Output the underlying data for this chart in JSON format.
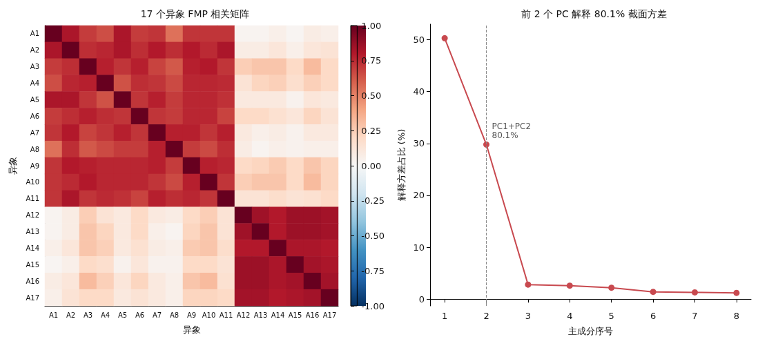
{
  "chart_data": [
    {
      "type": "heatmap",
      "title": "17 个异象 FMP 相关矩阵",
      "xlabel": "异象",
      "ylabel": "异象",
      "categories": [
        "A1",
        "A2",
        "A3",
        "A4",
        "A5",
        "A6",
        "A7",
        "A8",
        "A9",
        "A10",
        "A11",
        "A12",
        "A13",
        "A14",
        "A15",
        "A16",
        "A17"
      ],
      "y_categories": [
        "A1",
        "A2",
        "A3",
        "A4",
        "A5",
        "A6",
        "A7",
        "A8",
        "A9",
        "A10",
        "A11",
        "A12",
        "A13",
        "A14",
        "A15",
        "A16",
        "A17"
      ],
      "cells": [
        [
          1,
          0.82,
          0.7,
          0.65,
          0.82,
          0.7,
          0.72,
          0.55,
          0.72,
          0.72,
          0.72,
          0.03,
          0.03,
          0.06,
          0.02,
          0.08,
          0.06
        ],
        [
          0.82,
          1,
          0.74,
          0.76,
          0.82,
          0.74,
          0.8,
          0.74,
          0.8,
          0.75,
          0.82,
          0.08,
          0.08,
          0.12,
          0.06,
          0.12,
          0.14
        ],
        [
          0.7,
          0.74,
          1,
          0.78,
          0.72,
          0.78,
          0.68,
          0.62,
          0.78,
          0.8,
          0.72,
          0.25,
          0.28,
          0.28,
          0.2,
          0.32,
          0.2
        ],
        [
          0.65,
          0.76,
          0.78,
          1,
          0.64,
          0.74,
          0.72,
          0.66,
          0.76,
          0.76,
          0.75,
          0.14,
          0.22,
          0.24,
          0.17,
          0.24,
          0.2
        ],
        [
          0.82,
          0.82,
          0.72,
          0.64,
          1,
          0.72,
          0.78,
          0.7,
          0.76,
          0.76,
          0.73,
          0.1,
          0.1,
          0.1,
          0.04,
          0.12,
          0.1
        ],
        [
          0.7,
          0.74,
          0.78,
          0.74,
          0.72,
          1,
          0.72,
          0.7,
          0.76,
          0.76,
          0.68,
          0.2,
          0.2,
          0.16,
          0.12,
          0.22,
          0.14
        ],
        [
          0.72,
          0.8,
          0.68,
          0.72,
          0.78,
          0.72,
          1,
          0.78,
          0.78,
          0.72,
          0.78,
          0.1,
          0.06,
          0.08,
          0.04,
          0.1,
          0.1
        ],
        [
          0.55,
          0.74,
          0.62,
          0.66,
          0.7,
          0.7,
          0.78,
          1,
          0.7,
          0.66,
          0.74,
          0.08,
          0.03,
          0.06,
          0.04,
          0.06,
          0.06
        ],
        [
          0.72,
          0.8,
          0.78,
          0.76,
          0.76,
          0.76,
          0.78,
          0.7,
          1,
          0.78,
          0.76,
          0.2,
          0.22,
          0.26,
          0.2,
          0.28,
          0.22
        ],
        [
          0.72,
          0.75,
          0.8,
          0.76,
          0.76,
          0.76,
          0.72,
          0.66,
          0.78,
          1,
          0.72,
          0.25,
          0.28,
          0.28,
          0.2,
          0.32,
          0.22
        ],
        [
          0.72,
          0.82,
          0.72,
          0.75,
          0.73,
          0.68,
          0.78,
          0.74,
          0.76,
          0.72,
          1,
          0.14,
          0.14,
          0.18,
          0.14,
          0.16,
          0.2
        ],
        [
          0.03,
          0.08,
          0.25,
          0.14,
          0.1,
          0.2,
          0.1,
          0.08,
          0.2,
          0.25,
          0.14,
          1,
          0.85,
          0.8,
          0.86,
          0.86,
          0.84
        ],
        [
          0.03,
          0.08,
          0.28,
          0.22,
          0.1,
          0.2,
          0.06,
          0.03,
          0.22,
          0.28,
          0.14,
          0.85,
          1,
          0.8,
          0.86,
          0.86,
          0.84
        ],
        [
          0.06,
          0.12,
          0.28,
          0.24,
          0.1,
          0.16,
          0.08,
          0.06,
          0.26,
          0.28,
          0.18,
          0.8,
          0.8,
          1,
          0.82,
          0.82,
          0.8
        ],
        [
          0.02,
          0.06,
          0.2,
          0.17,
          0.04,
          0.12,
          0.04,
          0.04,
          0.2,
          0.2,
          0.14,
          0.86,
          0.86,
          0.82,
          1,
          0.84,
          0.82
        ],
        [
          0.08,
          0.12,
          0.32,
          0.24,
          0.12,
          0.22,
          0.1,
          0.06,
          0.28,
          0.32,
          0.16,
          0.86,
          0.86,
          0.82,
          0.84,
          1,
          0.84
        ],
        [
          0.06,
          0.14,
          0.2,
          0.2,
          0.1,
          0.14,
          0.1,
          0.06,
          0.22,
          0.22,
          0.2,
          0.84,
          0.84,
          0.8,
          0.82,
          0.84,
          1
        ]
      ],
      "clim": [
        -1,
        1
      ],
      "cticks": [
        {
          "value": -1,
          "label": "-1.00"
        },
        {
          "value": -0.75,
          "label": "-0.75"
        },
        {
          "value": -0.5,
          "label": "-0.50"
        },
        {
          "value": -0.25,
          "label": "-0.25"
        },
        {
          "value": 0,
          "label": "0.00"
        },
        {
          "value": 0.25,
          "label": "0.25"
        },
        {
          "value": 0.5,
          "label": "0.50"
        },
        {
          "value": 0.75,
          "label": "0.75"
        },
        {
          "value": 1,
          "label": "1.00"
        }
      ]
    },
    {
      "type": "line",
      "title": "前 2 个 PC 解释 80.1% 截面方差",
      "xlabel": "主成分序号",
      "ylabel": "解释方差占比 (%)",
      "x": [
        1,
        2,
        3,
        4,
        5,
        6,
        7,
        8
      ],
      "series": [
        {
          "color": "#c8494f",
          "values": [
            50.3,
            29.8,
            2.8,
            2.6,
            2.2,
            1.4,
            1.3,
            1.2
          ]
        }
      ],
      "xlim": [
        0.65,
        8.35
      ],
      "xticks": [
        1,
        2,
        3,
        4,
        5,
        6,
        7,
        8
      ],
      "ylim": [
        -1.3,
        53
      ],
      "yticks": [
        0,
        10,
        20,
        30,
        40,
        50
      ],
      "marker": "circle",
      "line_style": "solid",
      "grid": false,
      "ref_lines": [
        {
          "axis": "x",
          "value": 2,
          "color": "#888888",
          "line_style": "dashed"
        }
      ],
      "annotations": [
        {
          "text": "PC1+PC2\n80.1%",
          "x": 2,
          "y": 29.8
        }
      ]
    }
  ]
}
